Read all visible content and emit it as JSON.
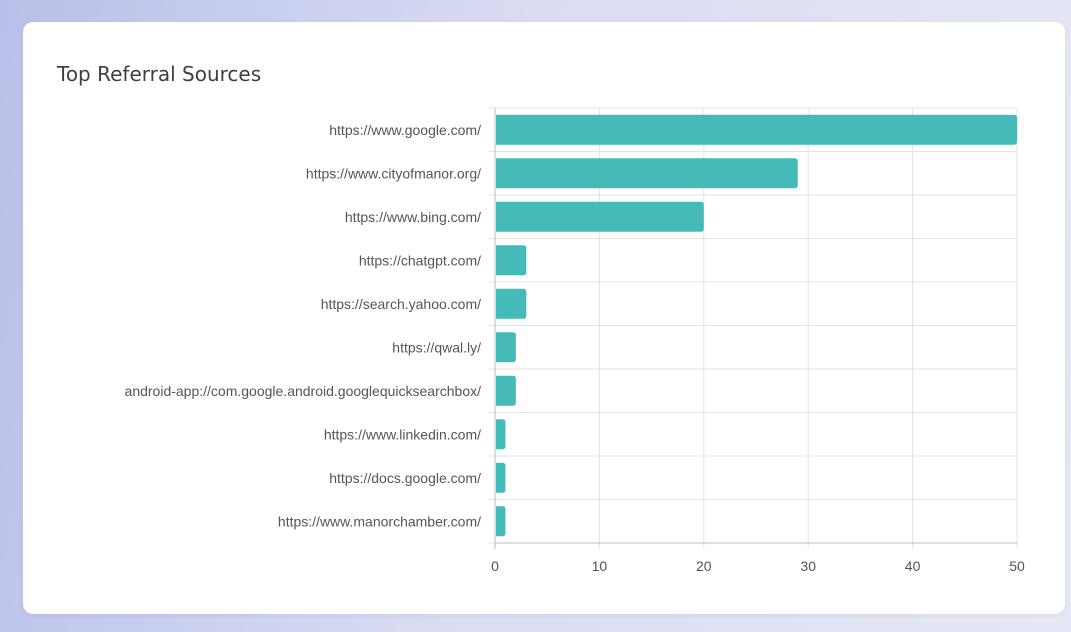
{
  "card": {
    "title": "Top Referral Sources"
  },
  "colors": {
    "bar": "#45bbb9",
    "grid": "#e3e3e3",
    "axis": "#bdbdbd",
    "label": "#555555"
  },
  "chart_data": {
    "type": "bar",
    "orientation": "horizontal",
    "title": "Top Referral Sources",
    "xlabel": "",
    "ylabel": "",
    "xlim": [
      0,
      50
    ],
    "xticks": [
      0,
      10,
      20,
      30,
      40,
      50
    ],
    "grid": true,
    "legend": "none",
    "categories": [
      "https://www.google.com/",
      "https://www.cityofmanor.org/",
      "https://www.bing.com/",
      "https://chatgpt.com/",
      "https://search.yahoo.com/",
      "https://qwal.ly/",
      "android-app://com.google.android.googlequicksearchbox/",
      "https://www.linkedin.com/",
      "https://docs.google.com/",
      "https://www.manorchamber.com/"
    ],
    "values": [
      50,
      29,
      20,
      3,
      3,
      2,
      2,
      1,
      1,
      1
    ]
  }
}
